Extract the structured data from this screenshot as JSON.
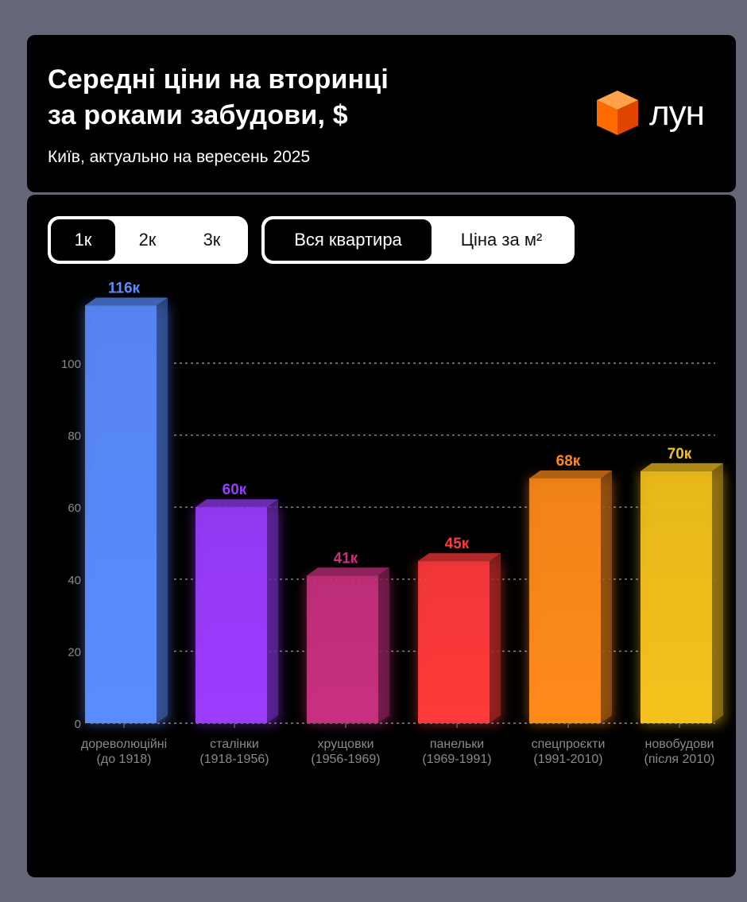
{
  "header": {
    "title": "Середні ціни на вторинці\nза роками забудови, $",
    "subtitle": "Київ, актуально на вересень 2025",
    "logo_text": "лун"
  },
  "controls": {
    "rooms": [
      {
        "label": "1к",
        "active": true
      },
      {
        "label": "2к",
        "active": false
      },
      {
        "label": "3к",
        "active": false
      }
    ],
    "mode": [
      {
        "label": "Вся квартира",
        "active": true
      },
      {
        "label": "Ціна за м²",
        "active": false
      }
    ]
  },
  "chart_data": {
    "type": "bar",
    "categories": [
      [
        "дореволюційні",
        "(до 1918)"
      ],
      [
        "сталінки",
        "(1918-1956)"
      ],
      [
        "хрущовки",
        "(1956-1969)"
      ],
      [
        "панельки",
        "(1969-1991)"
      ],
      [
        "спецпроєкти",
        "(1991-2010)"
      ],
      [
        "новобудови",
        "(після 2010)"
      ]
    ],
    "values": [
      116,
      60,
      41,
      45,
      68,
      70
    ],
    "labels": [
      "116к",
      "60к",
      "41к",
      "45к",
      "68к",
      "70к"
    ],
    "colors": [
      "#5b8cff",
      "#9b3cff",
      "#c8307f",
      "#ff3a3a",
      "#ff8a1a",
      "#f5c21c"
    ],
    "yticks": [
      0,
      20,
      40,
      60,
      80,
      100
    ],
    "ylim": [
      0,
      120
    ],
    "grid": true
  }
}
